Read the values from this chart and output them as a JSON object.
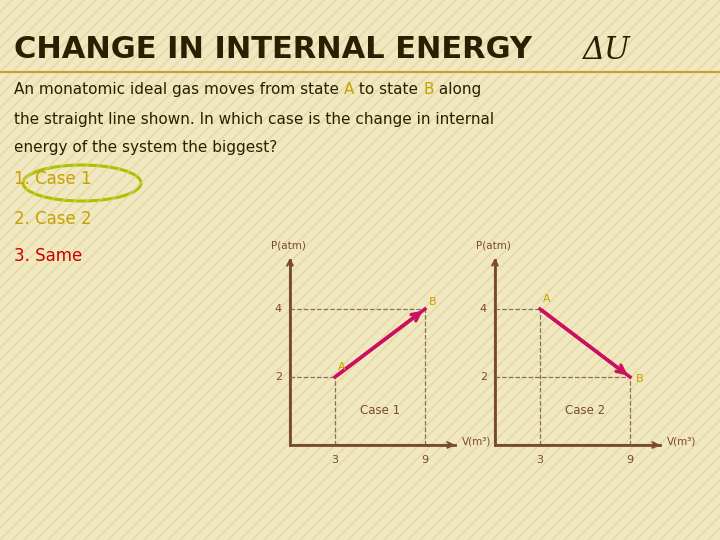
{
  "bg_color": "#f0e8c0",
  "title_main": "CHANGE IN INTERNAL ENERGY ",
  "title_italic": "ΔU",
  "title_color": "#2a1f00",
  "title_underline_color": "#c8a030",
  "body_color": "#2a1f00",
  "state_A_color": "#c8a000",
  "state_B_color": "#c8a000",
  "body_line1a": "An monatomic ideal gas moves from state ",
  "body_line1b": "A",
  "body_line1c": " to state ",
  "body_line1d": "B",
  "body_line1e": " along",
  "body_line2": "the straight line shown. In which case is the change in internal",
  "body_line3": "energy of the system the biggest?",
  "option1_text": "1. Case 1",
  "option1_color": "#c8a000",
  "option1_circle_color": "#b0c000",
  "option2_text": "2. Case 2",
  "option2_color": "#c8a000",
  "option3_text": "3. Same",
  "option3_color": "#cc0000",
  "case1_title": "Case 1",
  "case2_title": "Case 2",
  "ylabel": "P(atm)",
  "xlabel": "V(m³)",
  "case1_A": [
    3,
    2
  ],
  "case1_B": [
    9,
    4
  ],
  "case2_A": [
    3,
    4
  ],
  "case2_B": [
    9,
    2
  ],
  "line_color": "#cc1060",
  "dashed_color": "#8b7060",
  "axis_color": "#7a4a30",
  "label_color": "#7a4a30",
  "point_label_color": "#c8a000",
  "stripe_color": "#e0d090",
  "stripe_alpha": 0.6
}
